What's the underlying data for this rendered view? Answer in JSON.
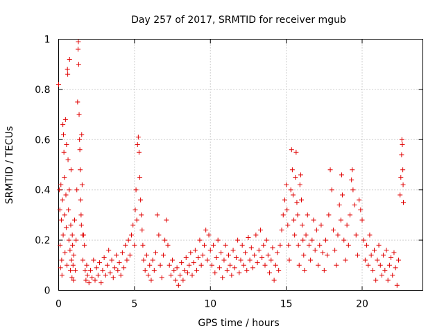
{
  "chart_data": {
    "type": "scatter",
    "title": "Day 257 of 2017, SRMTID for receiver mgub",
    "xlabel": "GPS time / hours",
    "ylabel": "SRMTID / TECUs",
    "xlim": [
      0,
      24
    ],
    "ylim": [
      0,
      1
    ],
    "x_ticks": [
      {
        "value": 0,
        "label": "0"
      },
      {
        "value": 5,
        "label": "5"
      },
      {
        "value": 10,
        "label": "10"
      },
      {
        "value": 15,
        "label": "15"
      },
      {
        "value": 20,
        "label": "20"
      }
    ],
    "y_ticks": [
      {
        "value": 0,
        "label": "0"
      },
      {
        "value": 0.2,
        "label": "0.2"
      },
      {
        "value": 0.4,
        "label": "0.4"
      },
      {
        "value": 0.6,
        "label": "0.6"
      },
      {
        "value": 0.8,
        "label": "0.8"
      },
      {
        "value": 1,
        "label": "1"
      }
    ],
    "grid": true,
    "marker": "plus",
    "color": "#e00000",
    "series": [
      {
        "name": "SRMTID",
        "points": [
          [
            0.0,
            0.82
          ],
          [
            0.05,
            0.4
          ],
          [
            0.08,
            0.32
          ],
          [
            0.1,
            0.18
          ],
          [
            0.12,
            0.09
          ],
          [
            0.15,
            0.42
          ],
          [
            0.18,
            0.28
          ],
          [
            0.2,
            0.12
          ],
          [
            0.22,
            0.06
          ],
          [
            0.25,
            0.36
          ],
          [
            0.28,
            0.66
          ],
          [
            0.3,
            0.22
          ],
          [
            0.32,
            0.62
          ],
          [
            0.35,
            0.55
          ],
          [
            0.38,
            0.45
          ],
          [
            0.4,
            0.3
          ],
          [
            0.42,
            0.15
          ],
          [
            0.45,
            0.68
          ],
          [
            0.48,
            0.38
          ],
          [
            0.5,
            0.25
          ],
          [
            0.52,
            0.58
          ],
          [
            0.55,
            0.1
          ],
          [
            0.58,
            0.88
          ],
          [
            0.6,
            0.86
          ],
          [
            0.62,
            0.52
          ],
          [
            0.65,
            0.32
          ],
          [
            0.68,
            0.2
          ],
          [
            0.7,
            0.4
          ],
          [
            0.72,
            0.92
          ],
          [
            0.75,
            0.16
          ],
          [
            0.78,
            0.08
          ],
          [
            0.8,
            0.26
          ],
          [
            0.82,
            0.48
          ],
          [
            0.85,
            0.12
          ],
          [
            0.88,
            0.05
          ],
          [
            0.9,
            0.22
          ],
          [
            0.92,
            0.18
          ],
          [
            0.95,
            0.1
          ],
          [
            0.98,
            0.04
          ],
          [
            1.0,
            0.14
          ],
          [
            1.05,
            0.28
          ],
          [
            1.1,
            0.08
          ],
          [
            1.15,
            0.2
          ],
          [
            1.2,
            0.4
          ],
          [
            1.25,
            0.75
          ],
          [
            1.28,
            0.96
          ],
          [
            1.3,
            0.99
          ],
          [
            1.32,
            0.9
          ],
          [
            1.35,
            0.7
          ],
          [
            1.38,
            0.6
          ],
          [
            1.4,
            0.56
          ],
          [
            1.42,
            0.48
          ],
          [
            1.45,
            0.36
          ],
          [
            1.48,
            0.3
          ],
          [
            1.5,
            0.26
          ],
          [
            1.52,
            0.62
          ],
          [
            1.55,
            0.42
          ],
          [
            1.58,
            0.22
          ],
          [
            1.6,
            0.12
          ],
          [
            1.65,
            0.22
          ],
          [
            1.7,
            0.18
          ],
          [
            1.75,
            0.08
          ],
          [
            1.8,
            0.04
          ],
          [
            1.85,
            0.1
          ],
          [
            1.9,
            0.06
          ],
          [
            2.0,
            0.03
          ],
          [
            2.1,
            0.08
          ],
          [
            2.2,
            0.05
          ],
          [
            2.3,
            0.12
          ],
          [
            2.4,
            0.04
          ],
          [
            2.5,
            0.09
          ],
          [
            2.6,
            0.06
          ],
          [
            2.7,
            0.11
          ],
          [
            2.8,
            0.03
          ],
          [
            2.9,
            0.08
          ],
          [
            3.0,
            0.13
          ],
          [
            3.1,
            0.06
          ],
          [
            3.2,
            0.1
          ],
          [
            3.3,
            0.16
          ],
          [
            3.4,
            0.07
          ],
          [
            3.5,
            0.12
          ],
          [
            3.6,
            0.05
          ],
          [
            3.7,
            0.09
          ],
          [
            3.8,
            0.14
          ],
          [
            3.9,
            0.08
          ],
          [
            4.0,
            0.11
          ],
          [
            4.1,
            0.06
          ],
          [
            4.2,
            0.15
          ],
          [
            4.3,
            0.09
          ],
          [
            4.4,
            0.18
          ],
          [
            4.5,
            0.12
          ],
          [
            4.6,
            0.2
          ],
          [
            4.7,
            0.14
          ],
          [
            4.8,
            0.22
          ],
          [
            4.9,
            0.26
          ],
          [
            5.0,
            0.18
          ],
          [
            5.05,
            0.32
          ],
          [
            5.1,
            0.4
          ],
          [
            5.15,
            0.28
          ],
          [
            5.2,
            0.58
          ],
          [
            5.25,
            0.61
          ],
          [
            5.3,
            0.55
          ],
          [
            5.35,
            0.45
          ],
          [
            5.4,
            0.36
          ],
          [
            5.45,
            0.3
          ],
          [
            5.5,
            0.24
          ],
          [
            5.55,
            0.18
          ],
          [
            5.6,
            0.12
          ],
          [
            5.7,
            0.08
          ],
          [
            5.8,
            0.14
          ],
          [
            5.9,
            0.06
          ],
          [
            6.0,
            0.1
          ],
          [
            6.1,
            0.04
          ],
          [
            6.2,
            0.12
          ],
          [
            6.3,
            0.08
          ],
          [
            6.4,
            0.15
          ],
          [
            6.5,
            0.3
          ],
          [
            6.6,
            0.22
          ],
          [
            6.7,
            0.1
          ],
          [
            6.8,
            0.05
          ],
          [
            6.9,
            0.14
          ],
          [
            7.0,
            0.2
          ],
          [
            7.1,
            0.28
          ],
          [
            7.2,
            0.18
          ],
          [
            7.3,
            0.1
          ],
          [
            7.4,
            0.06
          ],
          [
            7.5,
            0.12
          ],
          [
            7.6,
            0.08
          ],
          [
            7.7,
            0.04
          ],
          [
            7.8,
            0.09
          ],
          [
            7.9,
            0.02
          ],
          [
            8.0,
            0.06
          ],
          [
            8.1,
            0.11
          ],
          [
            8.2,
            0.04
          ],
          [
            8.3,
            0.08
          ],
          [
            8.4,
            0.13
          ],
          [
            8.5,
            0.07
          ],
          [
            8.6,
            0.1
          ],
          [
            8.7,
            0.15
          ],
          [
            8.8,
            0.06
          ],
          [
            8.9,
            0.11
          ],
          [
            9.0,
            0.16
          ],
          [
            9.1,
            0.08
          ],
          [
            9.2,
            0.13
          ],
          [
            9.3,
            0.2
          ],
          [
            9.4,
            0.1
          ],
          [
            9.5,
            0.14
          ],
          [
            9.6,
            0.18
          ],
          [
            9.7,
            0.24
          ],
          [
            9.8,
            0.12
          ],
          [
            9.9,
            0.22
          ],
          [
            10.0,
            0.16
          ],
          [
            10.1,
            0.1
          ],
          [
            10.2,
            0.18
          ],
          [
            10.3,
            0.07
          ],
          [
            10.4,
            0.13
          ],
          [
            10.5,
            0.2
          ],
          [
            10.6,
            0.09
          ],
          [
            10.7,
            0.15
          ],
          [
            10.8,
            0.05
          ],
          [
            10.9,
            0.12
          ],
          [
            11.0,
            0.18
          ],
          [
            11.1,
            0.08
          ],
          [
            11.2,
            0.14
          ],
          [
            11.3,
            0.1
          ],
          [
            11.4,
            0.06
          ],
          [
            11.5,
            0.16
          ],
          [
            11.6,
            0.09
          ],
          [
            11.7,
            0.13
          ],
          [
            11.8,
            0.2
          ],
          [
            11.9,
            0.07
          ],
          [
            12.0,
            0.12
          ],
          [
            12.1,
            0.18
          ],
          [
            12.2,
            0.1
          ],
          [
            12.3,
            0.15
          ],
          [
            12.4,
            0.08
          ],
          [
            12.5,
            0.21
          ],
          [
            12.6,
            0.12
          ],
          [
            12.7,
            0.17
          ],
          [
            12.8,
            0.09
          ],
          [
            12.9,
            0.14
          ],
          [
            13.0,
            0.22
          ],
          [
            13.1,
            0.11
          ],
          [
            13.2,
            0.16
          ],
          [
            13.3,
            0.24
          ],
          [
            13.4,
            0.13
          ],
          [
            13.5,
            0.18
          ],
          [
            13.6,
            0.1
          ],
          [
            13.7,
            0.2
          ],
          [
            13.8,
            0.14
          ],
          [
            13.9,
            0.07
          ],
          [
            14.0,
            0.12
          ],
          [
            14.1,
            0.17
          ],
          [
            14.2,
            0.04
          ],
          [
            14.3,
            0.1
          ],
          [
            14.4,
            0.15
          ],
          [
            14.5,
            0.08
          ],
          [
            14.6,
            0.18
          ],
          [
            14.7,
            0.24
          ],
          [
            14.8,
            0.3
          ],
          [
            14.9,
            0.36
          ],
          [
            15.0,
            0.42
          ],
          [
            15.05,
            0.32
          ],
          [
            15.1,
            0.26
          ],
          [
            15.15,
            0.18
          ],
          [
            15.2,
            0.12
          ],
          [
            15.3,
            0.4
          ],
          [
            15.35,
            0.56
          ],
          [
            15.4,
            0.48
          ],
          [
            15.45,
            0.38
          ],
          [
            15.5,
            0.28
          ],
          [
            15.55,
            0.22
          ],
          [
            15.6,
            0.45
          ],
          [
            15.65,
            0.55
          ],
          [
            15.7,
            0.35
          ],
          [
            15.75,
            0.3
          ],
          [
            15.8,
            0.18
          ],
          [
            15.85,
            0.1
          ],
          [
            15.9,
            0.42
          ],
          [
            15.95,
            0.46
          ],
          [
            16.0,
            0.36
          ],
          [
            16.05,
            0.26
          ],
          [
            16.1,
            0.2
          ],
          [
            16.15,
            0.14
          ],
          [
            16.2,
            0.08
          ],
          [
            16.3,
            0.22
          ],
          [
            16.4,
            0.3
          ],
          [
            16.5,
            0.18
          ],
          [
            16.6,
            0.12
          ],
          [
            16.7,
            0.2
          ],
          [
            16.8,
            0.28
          ],
          [
            16.9,
            0.16
          ],
          [
            17.0,
            0.24
          ],
          [
            17.1,
            0.1
          ],
          [
            17.2,
            0.18
          ],
          [
            17.3,
            0.26
          ],
          [
            17.4,
            0.15
          ],
          [
            17.5,
            0.08
          ],
          [
            17.6,
            0.2
          ],
          [
            17.7,
            0.14
          ],
          [
            17.8,
            0.3
          ],
          [
            17.9,
            0.48
          ],
          [
            18.0,
            0.4
          ],
          [
            18.1,
            0.24
          ],
          [
            18.2,
            0.16
          ],
          [
            18.3,
            0.1
          ],
          [
            18.4,
            0.22
          ],
          [
            18.5,
            0.34
          ],
          [
            18.6,
            0.28
          ],
          [
            18.65,
            0.46
          ],
          [
            18.7,
            0.38
          ],
          [
            18.8,
            0.2
          ],
          [
            18.9,
            0.12
          ],
          [
            19.0,
            0.26
          ],
          [
            19.1,
            0.18
          ],
          [
            19.2,
            0.3
          ],
          [
            19.3,
            0.44
          ],
          [
            19.35,
            0.48
          ],
          [
            19.4,
            0.4
          ],
          [
            19.5,
            0.34
          ],
          [
            19.6,
            0.22
          ],
          [
            19.7,
            0.14
          ],
          [
            19.8,
            0.36
          ],
          [
            19.9,
            0.32
          ],
          [
            20.0,
            0.28
          ],
          [
            20.1,
            0.2
          ],
          [
            20.2,
            0.12
          ],
          [
            20.3,
            0.18
          ],
          [
            20.4,
            0.1
          ],
          [
            20.5,
            0.22
          ],
          [
            20.6,
            0.14
          ],
          [
            20.7,
            0.08
          ],
          [
            20.8,
            0.16
          ],
          [
            20.9,
            0.04
          ],
          [
            21.0,
            0.12
          ],
          [
            21.1,
            0.18
          ],
          [
            21.2,
            0.1
          ],
          [
            21.3,
            0.06
          ],
          [
            21.4,
            0.14
          ],
          [
            21.5,
            0.08
          ],
          [
            21.6,
            0.16
          ],
          [
            21.7,
            0.04
          ],
          [
            21.8,
            0.1
          ],
          [
            21.9,
            0.13
          ],
          [
            22.0,
            0.06
          ],
          [
            22.1,
            0.15
          ],
          [
            22.2,
            0.09
          ],
          [
            22.3,
            0.02
          ],
          [
            22.4,
            0.12
          ],
          [
            22.5,
            0.38
          ],
          [
            22.55,
            0.45
          ],
          [
            22.6,
            0.54
          ],
          [
            22.62,
            0.6
          ],
          [
            22.65,
            0.58
          ],
          [
            22.68,
            0.48
          ],
          [
            22.7,
            0.42
          ],
          [
            22.72,
            0.35
          ]
        ]
      }
    ]
  }
}
